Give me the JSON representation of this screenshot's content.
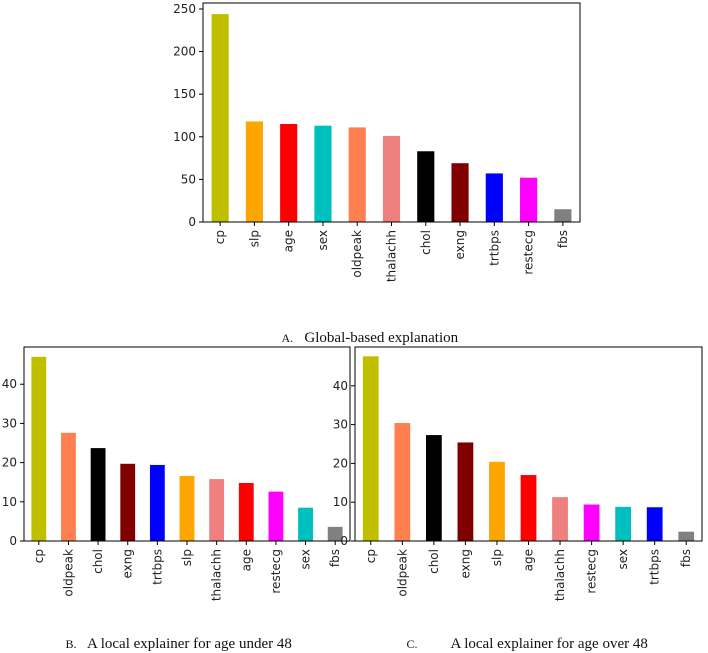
{
  "chart_data": [
    {
      "id": "A",
      "type": "bar",
      "categories": [
        "cp",
        "slp",
        "age",
        "sex",
        "oldpeak",
        "thalachh",
        "chol",
        "exng",
        "trtbps",
        "restecg",
        "fbs"
      ],
      "values": [
        244,
        118,
        115,
        113,
        111,
        101,
        83,
        69,
        57,
        52,
        15
      ],
      "colors": [
        "#bfbf00",
        "#ffa500",
        "#ff0000",
        "#00bfbf",
        "#ff7f50",
        "#f08080",
        "#000000",
        "#800000",
        "#0000ff",
        "#ff00ff",
        "#808080"
      ],
      "yticks": [
        0,
        50,
        100,
        150,
        200,
        250
      ],
      "ylim": [
        0,
        257
      ],
      "title": "",
      "xlabel": "",
      "ylabel": "",
      "caption_letter": "A.",
      "caption_text": "Global-based explanation"
    },
    {
      "id": "B",
      "type": "bar",
      "categories": [
        "cp",
        "oldpeak",
        "chol",
        "exng",
        "trtbps",
        "slp",
        "thalachh",
        "age",
        "restecg",
        "sex",
        "fbs"
      ],
      "values": [
        47,
        27.6,
        23.7,
        19.7,
        19.4,
        16.6,
        15.8,
        14.8,
        12.6,
        8.5,
        3.6
      ],
      "colors": [
        "#bfbf00",
        "#ff7f50",
        "#000000",
        "#800000",
        "#0000ff",
        "#ffa500",
        "#f08080",
        "#ff0000",
        "#ff00ff",
        "#00bfbf",
        "#808080"
      ],
      "yticks": [
        0,
        10,
        20,
        30,
        40
      ],
      "ylim": [
        0,
        49.5
      ],
      "title": "",
      "xlabel": "",
      "ylabel": "",
      "caption_letter": "B.",
      "caption_text": "A local explainer for age under 48"
    },
    {
      "id": "C",
      "type": "bar",
      "categories": [
        "cp",
        "oldpeak",
        "chol",
        "exng",
        "slp",
        "age",
        "thalachh",
        "restecg",
        "sex",
        "trtbps",
        "fbs"
      ],
      "values": [
        47.6,
        30.4,
        27.3,
        25.4,
        20.4,
        17,
        11.3,
        9.4,
        8.8,
        8.7,
        2.4
      ],
      "colors": [
        "#bfbf00",
        "#ff7f50",
        "#000000",
        "#800000",
        "#ffa500",
        "#ff0000",
        "#f08080",
        "#ff00ff",
        "#00bfbf",
        "#0000ff",
        "#808080"
      ],
      "yticks": [
        0,
        10,
        20,
        30,
        40
      ],
      "ylim": [
        0,
        50
      ],
      "title": "",
      "xlabel": "",
      "ylabel": "",
      "caption_letter": "C.",
      "caption_text": "A local explainer for age over 48"
    }
  ]
}
